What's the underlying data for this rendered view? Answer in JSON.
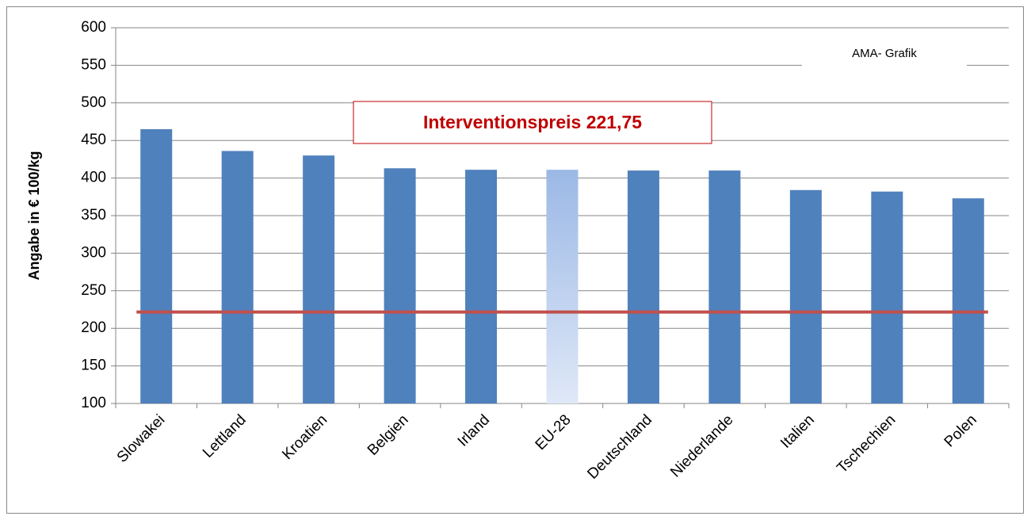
{
  "chart_data": {
    "type": "bar",
    "y_label": "Angabe in € 100/kg",
    "annotation": "Interventionspreis 221,75",
    "source": "AMA- Grafik",
    "categories": [
      "Slowakei",
      "Lettland",
      "Kroatien",
      "Belgien",
      "Irland",
      "EU-28",
      "Deutschland",
      "Niederlande",
      "Italien",
      "Tschechien",
      "Polen"
    ],
    "values": [
      465,
      436,
      430,
      413,
      411,
      411,
      410,
      410,
      384,
      382,
      373
    ],
    "colors": [
      "#4f81bd",
      "#4f81bd",
      "#4f81bd",
      "#4f81bd",
      "#4f81bd",
      "#a7c0e8",
      "#4f81bd",
      "#4f81bd",
      "#4f81bd",
      "#4f81bd",
      "#4f81bd"
    ],
    "reference_line": {
      "value": 221.75,
      "color": "#c0504d"
    },
    "ylim": [
      100,
      600
    ],
    "yticks": [
      100,
      150,
      200,
      250,
      300,
      350,
      400,
      450,
      500,
      550,
      600
    ],
    "grid": true
  }
}
